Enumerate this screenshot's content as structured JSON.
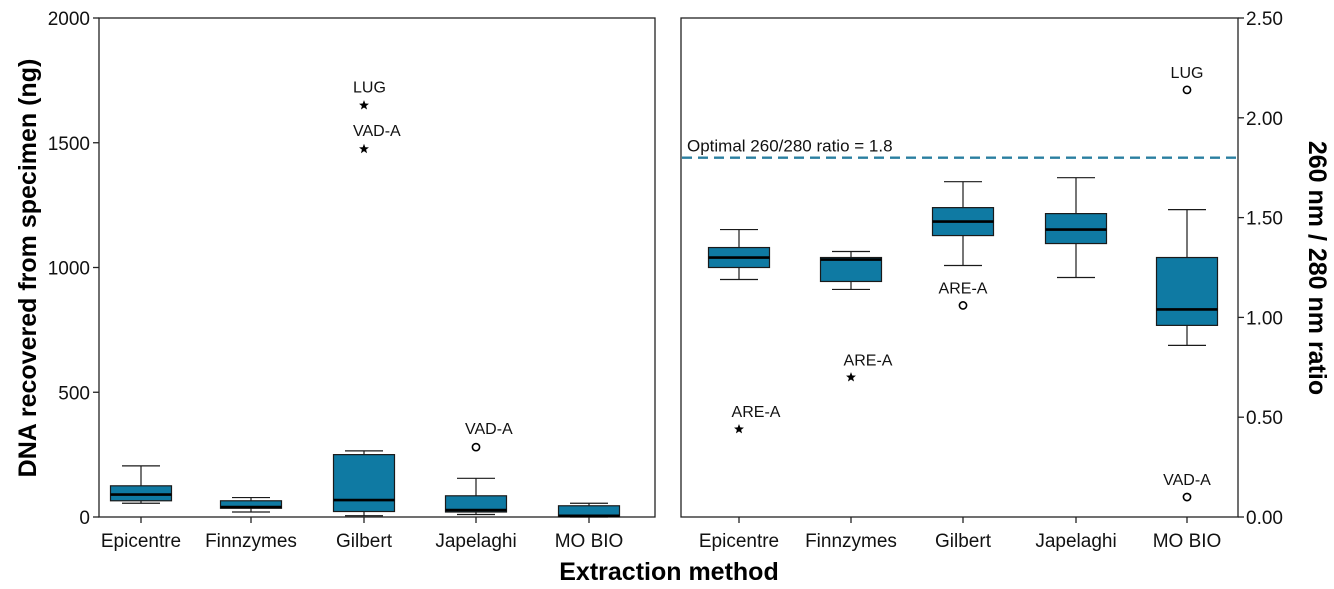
{
  "colors": {
    "box_fill": "#0f7aa3",
    "box_stroke": "#1a1a1a",
    "median": "#000000",
    "ref_line": "#2a7fa0"
  },
  "chart_data": [
    {
      "type": "box",
      "ylabel": "DNA recovered from specimen (ng)",
      "ylim": [
        0,
        2000
      ],
      "yticks": [
        0,
        500,
        1000,
        1500,
        2000
      ],
      "y_axis_side": "left",
      "categories": [
        "Epicentre",
        "Finnzymes",
        "Gilbert",
        "Japelaghi",
        "MO BIO"
      ],
      "boxes": [
        {
          "whisker_low": 55,
          "q1": 65,
          "median": 90,
          "q3": 125,
          "whisker_high": 205
        },
        {
          "whisker_low": 20,
          "q1": 35,
          "median": 40,
          "q3": 65,
          "whisker_high": 78
        },
        {
          "whisker_low": 5,
          "q1": 22,
          "median": 68,
          "q3": 250,
          "whisker_high": 265
        },
        {
          "whisker_low": 10,
          "q1": 20,
          "median": 28,
          "q3": 85,
          "whisker_high": 155
        },
        {
          "whisker_low": 0,
          "q1": 2,
          "median": 5,
          "q3": 45,
          "whisker_high": 55
        }
      ],
      "outliers": [
        {
          "category": "Gilbert",
          "value": 1650,
          "marker": "star",
          "label": "LUG"
        },
        {
          "category": "Gilbert",
          "value": 1475,
          "marker": "star",
          "label": "VAD-A"
        },
        {
          "category": "Japelaghi",
          "value": 280,
          "marker": "circle",
          "label": "VAD-A"
        }
      ],
      "grid": false
    },
    {
      "type": "box",
      "ylabel": "260 nm / 280 nm ratio",
      "ylim": [
        0,
        2.5
      ],
      "yticks": [
        0,
        0.5,
        1.0,
        1.5,
        2.0,
        2.5
      ],
      "ytick_labels": [
        "0.00",
        "0.50",
        "1.00",
        "1.50",
        "2.00",
        "2.50"
      ],
      "y_axis_side": "right",
      "categories": [
        "Epicentre",
        "Finnzymes",
        "Gilbert",
        "Japelaghi",
        "MO BIO"
      ],
      "boxes": [
        {
          "whisker_low": 1.19,
          "q1": 1.25,
          "median": 1.3,
          "q3": 1.35,
          "whisker_high": 1.44
        },
        {
          "whisker_low": 1.14,
          "q1": 1.18,
          "median": 1.29,
          "q3": 1.3,
          "whisker_high": 1.33
        },
        {
          "whisker_low": 1.26,
          "q1": 1.41,
          "median": 1.48,
          "q3": 1.55,
          "whisker_high": 1.68
        },
        {
          "whisker_low": 1.2,
          "q1": 1.37,
          "median": 1.44,
          "q3": 1.52,
          "whisker_high": 1.7
        },
        {
          "whisker_low": 0.86,
          "q1": 0.96,
          "median": 1.04,
          "q3": 1.3,
          "whisker_high": 1.54
        }
      ],
      "outliers": [
        {
          "category": "Epicentre",
          "value": 0.44,
          "marker": "star",
          "label": "ARE-A"
        },
        {
          "category": "Finnzymes",
          "value": 0.7,
          "marker": "star",
          "label": "ARE-A"
        },
        {
          "category": "Gilbert",
          "value": 1.06,
          "marker": "circle",
          "label": "ARE-A"
        },
        {
          "category": "MO BIO",
          "value": 2.14,
          "marker": "circle",
          "label": "LUG"
        },
        {
          "category": "MO BIO",
          "value": 0.1,
          "marker": "circle",
          "label": "VAD-A"
        }
      ],
      "reference_line": {
        "value": 1.8,
        "style": "dashed",
        "label": "Optimal 260/280 ratio = 1.8"
      },
      "grid": false
    }
  ],
  "xlabel": "Extraction method",
  "left_ytick_labels": [
    "0",
    "500",
    "1000",
    "1500",
    "2000"
  ]
}
